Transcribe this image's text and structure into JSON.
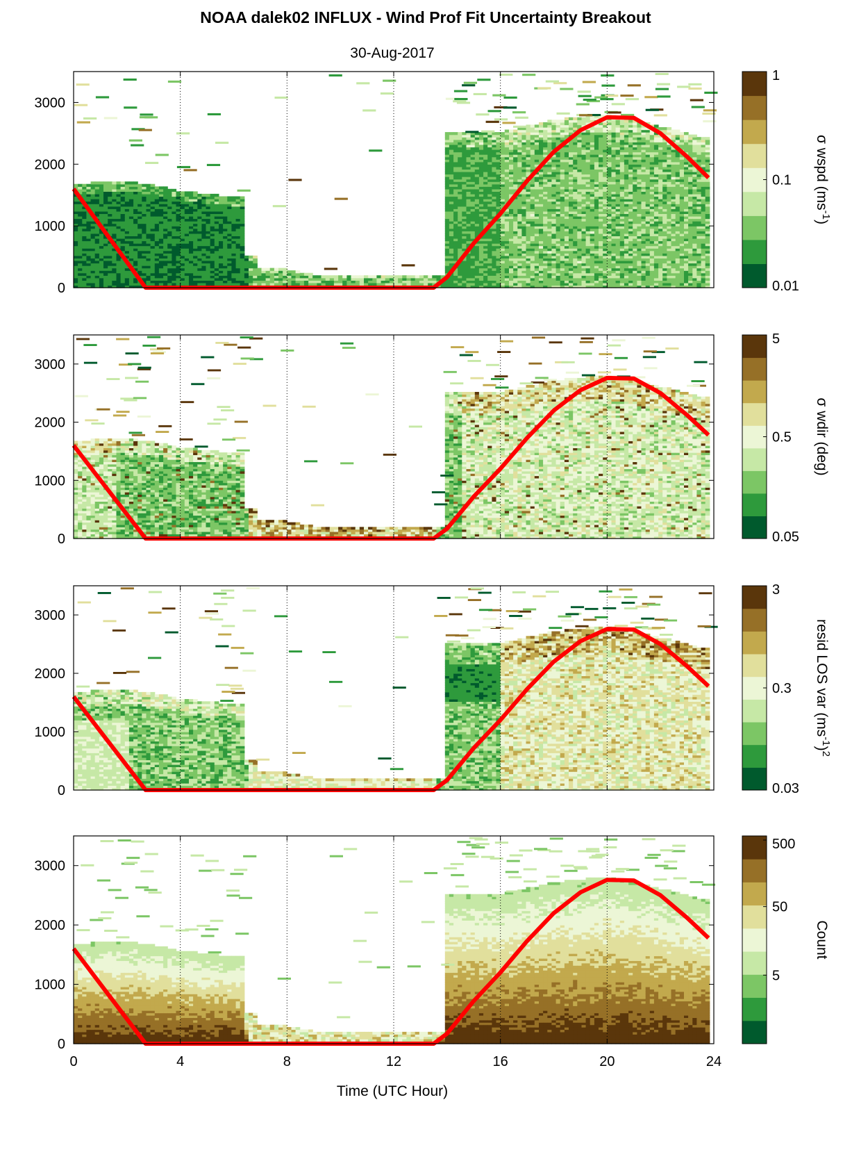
{
  "figure": {
    "title": "NOAA dalek02 INFLUX - Wind Prof Fit Uncertainty Breakout",
    "subtitle": "30-Aug-2017",
    "xlabel": "Time (UTC Hour)"
  },
  "colors": {
    "colormap": [
      "#005a2d",
      "#2e9a3c",
      "#7cc665",
      "#c6e8a6",
      "#ecf6d6",
      "#e1df9c",
      "#c2a94d",
      "#967027",
      "#5a360b"
    ],
    "overlay_line": "#ff0000",
    "axes": "#000000",
    "gridline": "#000000"
  },
  "chart_data": [
    {
      "type": "heatmap",
      "panel": "sigma-wspd",
      "xlim": [
        0,
        24
      ],
      "ylim": [
        0,
        3500
      ],
      "xticks": [
        "0",
        "4",
        "8",
        "12",
        "16",
        "20",
        "24"
      ],
      "yticks": [
        "0",
        "1000",
        "2000",
        "3000"
      ],
      "xgrid_dotted": [
        4,
        8,
        12,
        16,
        20
      ],
      "colorbar": {
        "label": "σ wspd (ms",
        "label_sup": "-1",
        "label_tail": ")",
        "scale": "log",
        "range": [
          0.01,
          1
        ],
        "ticks": [
          "1",
          "0.1",
          "0.01"
        ]
      },
      "approx_data_top_m": [
        [
          0,
          1650
        ],
        [
          1,
          1700
        ],
        [
          2,
          1700
        ],
        [
          3,
          1650
        ],
        [
          4,
          1550
        ],
        [
          5,
          1500
        ],
        [
          6,
          1450
        ],
        [
          6.5,
          500
        ],
        [
          7,
          300
        ],
        [
          8,
          280
        ],
        [
          9,
          200
        ],
        [
          10,
          170
        ],
        [
          11,
          170
        ],
        [
          12,
          160
        ],
        [
          13,
          170
        ],
        [
          13.5,
          200
        ],
        [
          14,
          2500
        ],
        [
          16,
          2500
        ],
        [
          18,
          2700
        ],
        [
          20,
          2800
        ],
        [
          22,
          2600
        ],
        [
          23.8,
          2400
        ]
      ],
      "dominant_level": "low (dark green) within boundary layer"
    },
    {
      "type": "heatmap",
      "panel": "sigma-wdir",
      "xlim": [
        0,
        24
      ],
      "ylim": [
        0,
        3500
      ],
      "xticks": [
        "0",
        "4",
        "8",
        "12",
        "16",
        "20",
        "24"
      ],
      "yticks": [
        "0",
        "1000",
        "2000",
        "3000"
      ],
      "xgrid_dotted": [
        4,
        8,
        12,
        16,
        20
      ],
      "colorbar": {
        "label": "σ wdir (deg)",
        "label_sup": "",
        "label_tail": "",
        "scale": "log",
        "range": [
          0.05,
          5
        ],
        "ticks": [
          "5",
          "0.5",
          "0.05"
        ]
      },
      "dominant_level": "mid (light green) daytime, darker green at night"
    },
    {
      "type": "heatmap",
      "panel": "resid-los-var",
      "xlim": [
        0,
        24
      ],
      "ylim": [
        0,
        3500
      ],
      "xticks": [
        "0",
        "4",
        "8",
        "12",
        "16",
        "20",
        "24"
      ],
      "yticks": [
        "0",
        "1000",
        "2000",
        "3000"
      ],
      "xgrid_dotted": [
        4,
        8,
        12,
        16,
        20
      ],
      "colorbar": {
        "label": "resid LOS var (ms",
        "label_sup": "-1",
        "label_tail": ")",
        "label_sup2": "2",
        "scale": "log",
        "range": [
          0.03,
          3
        ],
        "ticks": [
          "3",
          "0.3",
          "0.03"
        ]
      },
      "dominant_level": "light green / tan during afternoon"
    },
    {
      "type": "heatmap",
      "panel": "count",
      "xlim": [
        0,
        24
      ],
      "ylim": [
        0,
        3500
      ],
      "xticks": [
        "0",
        "4",
        "8",
        "12",
        "16",
        "20",
        "24"
      ],
      "yticks": [
        "0",
        "1000",
        "2000",
        "3000"
      ],
      "xgrid_dotted": [
        4,
        8,
        12,
        16,
        20
      ],
      "colorbar": {
        "label": "Count",
        "label_sup": "",
        "label_tail": "",
        "scale": "log",
        "range": [
          0.5,
          500
        ],
        "ticks": [
          "500",
          "50",
          "5"
        ]
      },
      "dominant_level": "high (dark brown) near surface, decreasing with height"
    }
  ],
  "overlay_line_data": {
    "description_hidden": false,
    "x": [
      0,
      2.7,
      13.5,
      14,
      15,
      16,
      17,
      18,
      19,
      20,
      21,
      22,
      23,
      23.8
    ],
    "y": [
      1600,
      0,
      0,
      170,
      720,
      1200,
      1730,
      2200,
      2550,
      2760,
      2750,
      2500,
      2120,
      1780
    ]
  }
}
